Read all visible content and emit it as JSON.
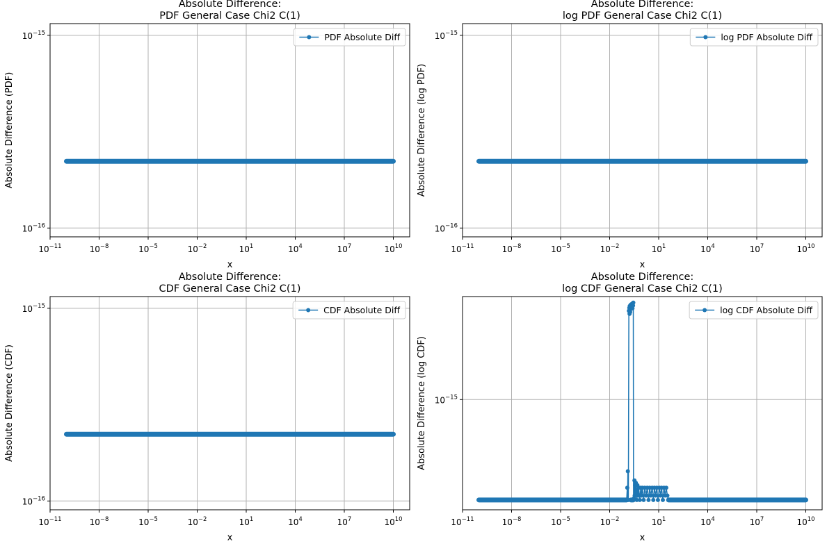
{
  "figure": {
    "series_color": "#1f77b4",
    "grid_color": "#b0b0b0"
  },
  "chart_data": [
    {
      "type": "line",
      "title": [
        "Absolute Difference:",
        "PDF General Case Chi2 C(1)"
      ],
      "xlabel": "x",
      "ylabel": "Absolute Difference (PDF)",
      "xscale": "log",
      "yscale": "log",
      "xlim": [
        1e-11,
        100000000000.0
      ],
      "ylim": [
        9e-17,
        1.15e-15
      ],
      "grid": true,
      "legend": "top-right",
      "xticks": [
        {
          "value": 1e-11,
          "base": "10",
          "exp": "−11"
        },
        {
          "value": 1e-08,
          "base": "10",
          "exp": "−8"
        },
        {
          "value": 1e-05,
          "base": "10",
          "exp": "−5"
        },
        {
          "value": 0.01,
          "base": "10",
          "exp": "−2"
        },
        {
          "value": 10.0,
          "base": "10",
          "exp": "1"
        },
        {
          "value": 10000.0,
          "base": "10",
          "exp": "4"
        },
        {
          "value": 10000000.0,
          "base": "10",
          "exp": "7"
        },
        {
          "value": 10000000000.0,
          "base": "10",
          "exp": "10"
        }
      ],
      "yticks": [
        {
          "value": 1e-16,
          "base": "10",
          "exp": "−16"
        },
        {
          "value": 1e-15,
          "base": "10",
          "exp": "−15"
        }
      ],
      "series": [
        {
          "name": "PDF Absolute Diff",
          "segments": [
            {
              "x_range": [
                1e-10,
                10000000000.0
              ],
              "y": 2.22e-16
            }
          ],
          "points": []
        }
      ]
    },
    {
      "type": "line",
      "title": [
        "Absolute Difference:",
        "log PDF General Case Chi2 C(1)"
      ],
      "xlabel": "x",
      "ylabel": "Absolute Difference (log PDF)",
      "xscale": "log",
      "yscale": "log",
      "xlim": [
        1e-11,
        100000000000.0
      ],
      "ylim": [
        9e-17,
        1.15e-15
      ],
      "grid": true,
      "legend": "top-right",
      "xticks": [
        {
          "value": 1e-11,
          "base": "10",
          "exp": "−11"
        },
        {
          "value": 1e-08,
          "base": "10",
          "exp": "−8"
        },
        {
          "value": 1e-05,
          "base": "10",
          "exp": "−5"
        },
        {
          "value": 0.01,
          "base": "10",
          "exp": "−2"
        },
        {
          "value": 10.0,
          "base": "10",
          "exp": "1"
        },
        {
          "value": 10000.0,
          "base": "10",
          "exp": "4"
        },
        {
          "value": 10000000.0,
          "base": "10",
          "exp": "7"
        },
        {
          "value": 10000000000.0,
          "base": "10",
          "exp": "10"
        }
      ],
      "yticks": [
        {
          "value": 1e-16,
          "base": "10",
          "exp": "−16"
        },
        {
          "value": 1e-15,
          "base": "10",
          "exp": "−15"
        }
      ],
      "series": [
        {
          "name": "log PDF Absolute Diff",
          "segments": [
            {
              "x_range": [
                1e-10,
                10000000000.0
              ],
              "y": 2.22e-16
            }
          ],
          "points": []
        }
      ]
    },
    {
      "type": "line",
      "title": [
        "Absolute Difference:",
        "CDF General Case Chi2 C(1)"
      ],
      "xlabel": "x",
      "ylabel": "Absolute Difference (CDF)",
      "xscale": "log",
      "yscale": "log",
      "xlim": [
        1e-11,
        100000000000.0
      ],
      "ylim": [
        9e-17,
        1.15e-15
      ],
      "grid": true,
      "legend": "top-right",
      "xticks": [
        {
          "value": 1e-11,
          "base": "10",
          "exp": "−11"
        },
        {
          "value": 1e-08,
          "base": "10",
          "exp": "−8"
        },
        {
          "value": 1e-05,
          "base": "10",
          "exp": "−5"
        },
        {
          "value": 0.01,
          "base": "10",
          "exp": "−2"
        },
        {
          "value": 10.0,
          "base": "10",
          "exp": "1"
        },
        {
          "value": 10000.0,
          "base": "10",
          "exp": "4"
        },
        {
          "value": 10000000.0,
          "base": "10",
          "exp": "7"
        },
        {
          "value": 10000000000.0,
          "base": "10",
          "exp": "10"
        }
      ],
      "yticks": [
        {
          "value": 1e-16,
          "base": "10",
          "exp": "−16"
        },
        {
          "value": 1e-15,
          "base": "10",
          "exp": "−15"
        }
      ],
      "series": [
        {
          "name": "CDF Absolute Diff",
          "segments": [
            {
              "x_range": [
                1e-10,
                10000000000.0
              ],
              "y": 2.22e-16
            }
          ],
          "points": []
        }
      ]
    },
    {
      "type": "line",
      "title": [
        "Absolute Difference:",
        "log CDF General Case Chi2 C(1)"
      ],
      "xlabel": "x",
      "ylabel": "Absolute Difference (log CDF)",
      "xscale": "log",
      "yscale": "log",
      "xlim": [
        1e-11,
        100000000000.0
      ],
      "ylim": [
        4.1e-16,
        2.3e-15
      ],
      "grid": true,
      "legend": "top-right",
      "xticks": [
        {
          "value": 1e-11,
          "base": "10",
          "exp": "−11"
        },
        {
          "value": 1e-08,
          "base": "10",
          "exp": "−8"
        },
        {
          "value": 1e-05,
          "base": "10",
          "exp": "−5"
        },
        {
          "value": 0.01,
          "base": "10",
          "exp": "−2"
        },
        {
          "value": 10.0,
          "base": "10",
          "exp": "1"
        },
        {
          "value": 10000.0,
          "base": "10",
          "exp": "4"
        },
        {
          "value": 10000000.0,
          "base": "10",
          "exp": "7"
        },
        {
          "value": 10000000000.0,
          "base": "10",
          "exp": "10"
        }
      ],
      "yticks": [
        {
          "value": 1e-15,
          "base": "10",
          "exp": "−15"
        }
      ],
      "series": [
        {
          "name": "log CDF Absolute Diff",
          "segments": [
            {
              "x_range": [
                1e-10,
                0.11
              ],
              "y": 4.44e-16
            },
            {
              "x_range": [
                0.2,
                0.28
              ],
              "y": 4.44e-16
            },
            {
              "x_range": [
                40,
                10000000000.0
              ],
              "y": 4.44e-16
            }
          ],
          "points": [
            [
              0.11,
              4.44e-16
            ],
            [
              0.12,
              4.9e-16
            ],
            [
              0.125,
              4.44e-16
            ],
            [
              0.13,
              5.6e-16
            ],
            [
              0.14,
              4.44e-16
            ],
            [
              0.15,
              2.05e-15
            ],
            [
              0.16,
              2.1e-15
            ],
            [
              0.165,
              2e-15
            ],
            [
              0.17,
              2.13e-15
            ],
            [
              0.18,
              2.03e-15
            ],
            [
              0.19,
              2.15e-15
            ],
            [
              0.2,
              2.08e-15
            ],
            [
              0.21,
              2.16e-15
            ],
            [
              0.22,
              2.1e-15
            ],
            [
              0.23,
              2.12e-15
            ],
            [
              0.24,
              2.17e-15
            ],
            [
              0.25,
              2.09e-15
            ],
            [
              0.26,
              2.18e-15
            ],
            [
              0.27,
              2.14e-15
            ],
            [
              0.28,
              2.19e-15
            ],
            [
              0.29,
              4.44e-16
            ],
            [
              0.31,
              4.5e-16
            ],
            [
              0.33,
              5.2e-16
            ],
            [
              0.34,
              4.6e-16
            ],
            [
              0.36,
              5e-16
            ],
            [
              0.38,
              4.7e-16
            ],
            [
              0.4,
              5.1e-16
            ],
            [
              0.43,
              4.8e-16
            ],
            [
              0.46,
              4.44e-16
            ],
            [
              0.5,
              5e-16
            ],
            [
              0.55,
              4.6e-16
            ],
            [
              0.6,
              4.9e-16
            ],
            [
              0.7,
              4.44e-16
            ],
            [
              0.8,
              4.9e-16
            ],
            [
              0.9,
              4.6e-16
            ],
            [
              1.0,
              4.9e-16
            ],
            [
              1.2,
              4.44e-16
            ],
            [
              1.4,
              4.9e-16
            ],
            [
              1.7,
              4.6e-16
            ],
            [
              2.0,
              4.9e-16
            ],
            [
              2.4,
              4.44e-16
            ],
            [
              2.8,
              4.9e-16
            ],
            [
              3.3,
              4.6e-16
            ],
            [
              4.0,
              4.9e-16
            ],
            [
              4.7,
              4.44e-16
            ],
            [
              5.5,
              4.9e-16
            ],
            [
              6.5,
              4.6e-16
            ],
            [
              7.7,
              4.9e-16
            ],
            [
              9.0,
              4.44e-16
            ],
            [
              11,
              4.9e-16
            ],
            [
              13,
              4.6e-16
            ],
            [
              15,
              4.9e-16
            ],
            [
              18,
              4.44e-16
            ],
            [
              21,
              4.9e-16
            ],
            [
              25,
              4.6e-16
            ],
            [
              29,
              4.9e-16
            ],
            [
              34,
              4.6e-16
            ],
            [
              40,
              4.44e-16
            ]
          ]
        }
      ]
    }
  ]
}
